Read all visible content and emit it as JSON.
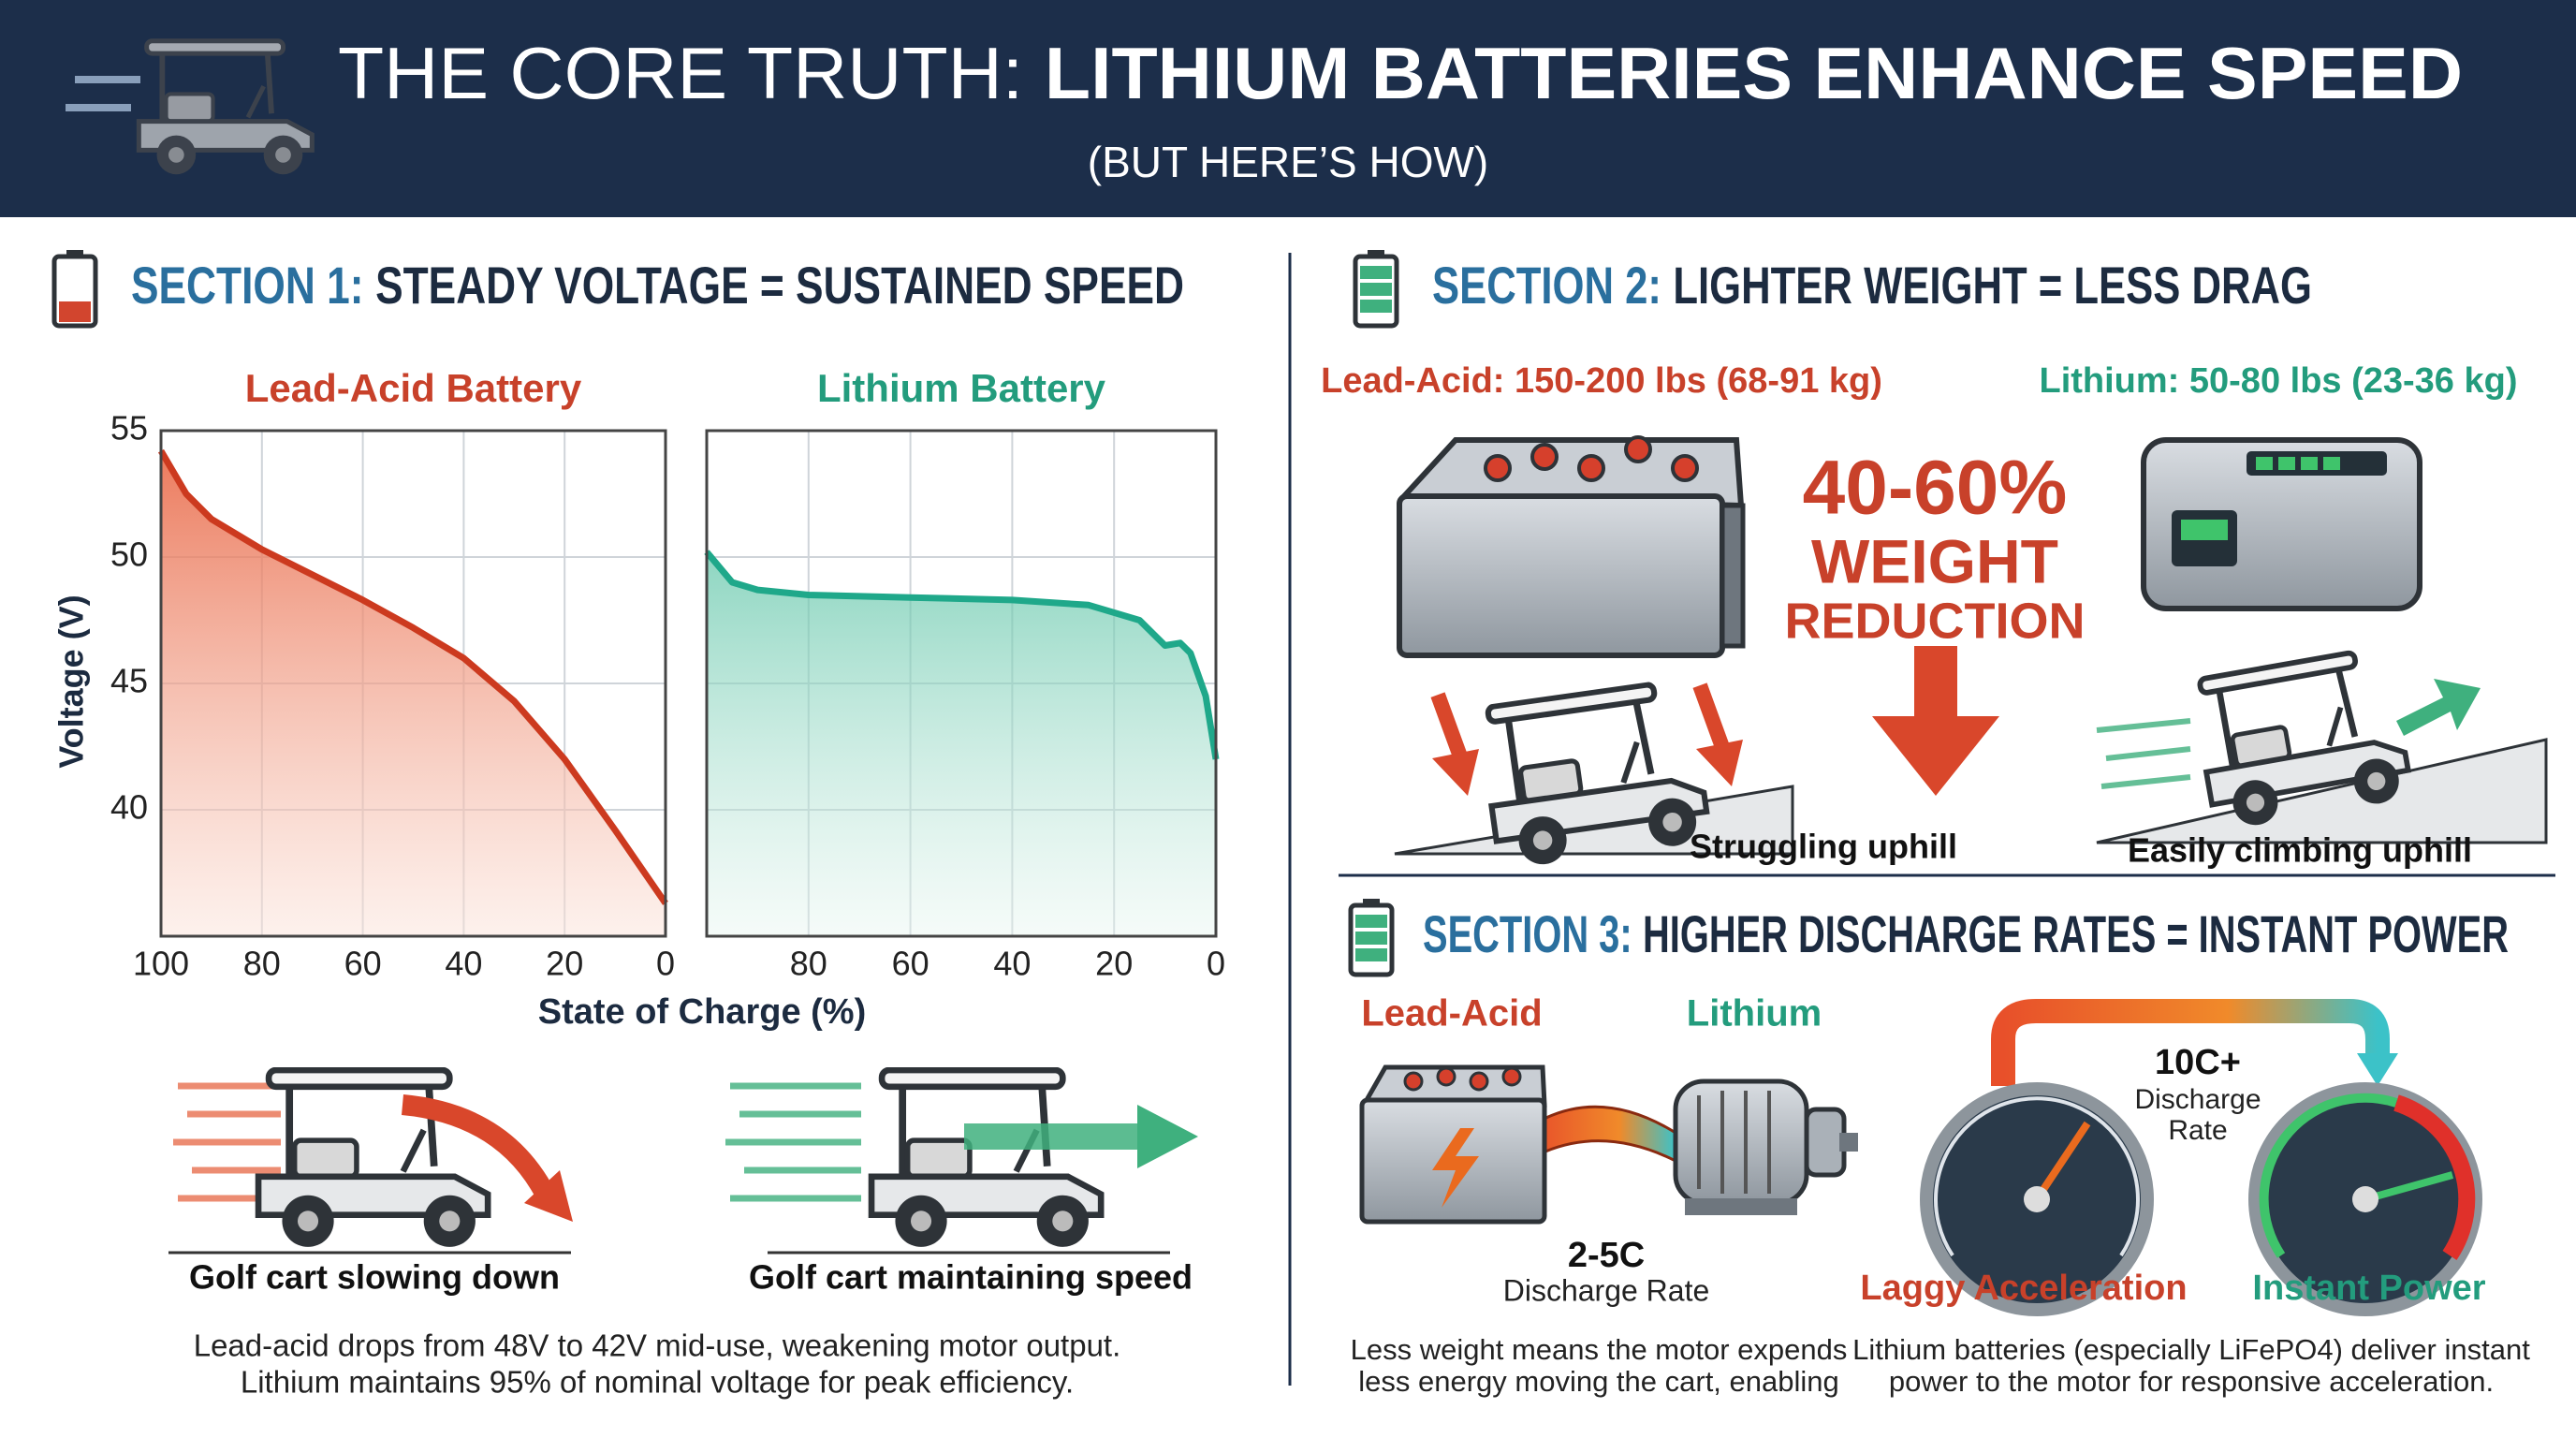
{
  "header": {
    "title_prefix": "THE CORE TRUTH:",
    "title_emphasis": "LITHIUM BATTERIES ENHANCE SPEED",
    "subtitle": "(BUT HERE’S HOW)"
  },
  "section1": {
    "label": "SECTION 1:",
    "heading": "STEADY VOLTAGE = SUSTAINED SPEED",
    "y_label": "Voltage (V)",
    "x_label": "State of Charge (%)",
    "charts": [
      {
        "type": "line",
        "title": "Lead-Acid Battery",
        "color": "#cc3a1f",
        "x": [
          100,
          95,
          90,
          80,
          70,
          60,
          50,
          40,
          30,
          20,
          10,
          0
        ],
        "values": [
          54.2,
          52.5,
          51.5,
          50.3,
          49.3,
          48.3,
          47.2,
          46,
          44.3,
          42,
          39.2,
          36.3
        ],
        "xlim": [
          100,
          0
        ],
        "ylim": [
          35,
          55
        ],
        "xticks": [
          100,
          80,
          60,
          40,
          20,
          0
        ],
        "yticks": [
          40,
          45,
          50,
          55
        ],
        "ytick_labels": true,
        "grid": true
      },
      {
        "type": "line",
        "title": "Lithium Battery",
        "color": "#1fa88a",
        "x": [
          100,
          95,
          90,
          80,
          60,
          40,
          25,
          15,
          10,
          7,
          5,
          2,
          0
        ],
        "values": [
          50.2,
          49,
          48.7,
          48.5,
          48.4,
          48.3,
          48.1,
          47.5,
          46.5,
          46.6,
          46.2,
          44.5,
          42
        ],
        "xlim": [
          100,
          0
        ],
        "ylim": [
          35,
          55
        ],
        "xticks": [
          80,
          60,
          40,
          20,
          0
        ],
        "yticks": [
          40,
          45,
          50,
          55
        ],
        "ytick_labels": false,
        "grid": true
      }
    ],
    "captions": [
      "Golf cart slowing down",
      "Golf cart maintaining speed"
    ],
    "note": [
      "Lead-acid drops from 48V to 42V mid-use, weakening motor output.",
      "Lithium maintains 95% of nominal voltage for peak efficiency."
    ]
  },
  "section2": {
    "label": "SECTION 2:",
    "heading": "LIGHTER WEIGHT = LESS DRAG",
    "lead_acid": "Lead-Acid: 150-200 lbs (68-91 kg)",
    "lithium": "Lithium: 50-80 lbs (23-36 kg)",
    "reduction": [
      "40-60%",
      "WEIGHT",
      "REDUCTION"
    ],
    "captions": [
      "Struggling uphill",
      "Easily climbing uphill"
    ]
  },
  "section3": {
    "label": "SECTION 3:",
    "heading": "HIGHER DISCHARGE RATES = INSTANT POWER",
    "lead_acid": "Lead-Acid",
    "lithium": "Lithium",
    "lead_rate": [
      "2-5C",
      "Discharge Rate"
    ],
    "lithium_rate": [
      "10C+",
      "Discharge",
      "Rate"
    ],
    "gauges": [
      "Laggy Acceleration",
      "Instant Power"
    ],
    "notes": [
      [
        "Less weight means the motor expends",
        "less energy moving the cart, enabling"
      ],
      [
        "Lithium batteries (especially LiFePO4) deliver instant",
        "power to the motor for responsive acceleration."
      ]
    ]
  }
}
